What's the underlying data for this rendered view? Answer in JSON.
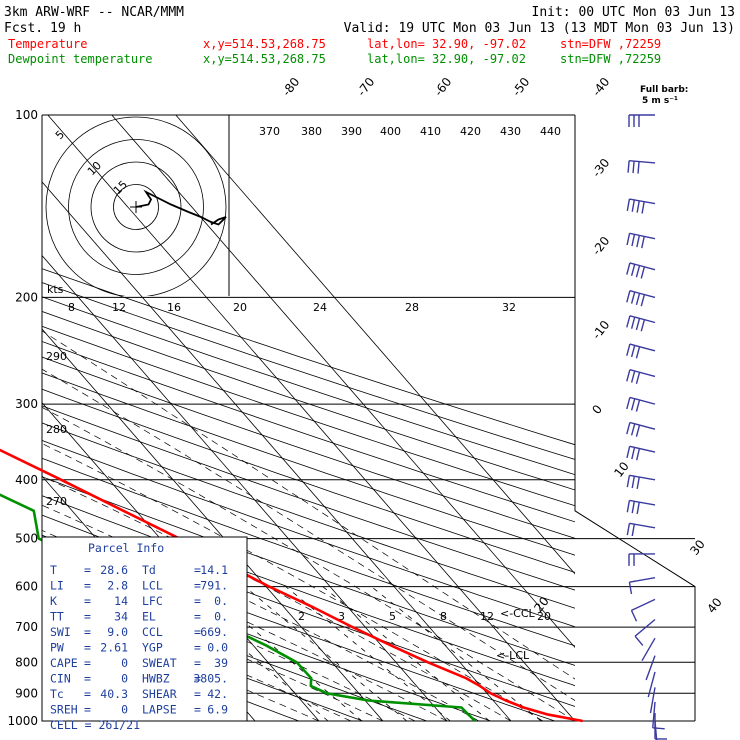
{
  "header": {
    "model": "3km ARW-WRF -- NCAR/MMM",
    "init": "Init: 00 UTC Mon 03 Jun 13",
    "fcst_label": "Fcst.",
    "fcst_value": "19 h",
    "valid": "Valid: 19 UTC Mon 03 Jun 13 (13 MDT Mon 03 Jun 13)",
    "temperature_label": "Temperature",
    "dewpoint_label": "Dewpoint temperature",
    "xy": "x,y=514.53,268.75",
    "latlon": "lat,lon= 32.90, -97.02",
    "stn": "stn=DFW ,72259"
  },
  "barb_legend": {
    "title": "Full barb:",
    "value": "5 m s⁻¹"
  },
  "chart_data": {
    "type": "line",
    "subtype": "skew-T log-P sounding",
    "y_scale": "log",
    "ylim": [
      1000,
      100
    ],
    "pressure_ticks": [
      "100",
      "200",
      "300",
      "400",
      "500",
      "600",
      "700",
      "800",
      "900",
      "1000"
    ],
    "temp_isotherm_labels": [
      "-80",
      "-70",
      "-60",
      "-50",
      "-40",
      "-30",
      "-20",
      "-10",
      "0",
      "10",
      "20",
      "30",
      "40"
    ],
    "theta_labels": [
      "370",
      "380",
      "390",
      "400",
      "410",
      "420",
      "430",
      "440"
    ],
    "dry_adiabat_labels": [
      "290",
      "280",
      "270"
    ],
    "mixing_ratio_labels": [
      "2",
      "3",
      "5",
      "8",
      "12",
      "20"
    ],
    "hodograph": {
      "unit": "kts",
      "ring_labels": [
        "5",
        "10",
        "15"
      ],
      "speed_labels": [
        "8",
        "12",
        "16",
        "20",
        "24",
        "28",
        "32"
      ],
      "uv": [
        [
          0,
          0
        ],
        [
          5,
          -1
        ],
        [
          6,
          -3
        ],
        [
          4,
          -6
        ],
        [
          8,
          -4
        ],
        [
          14,
          -1
        ],
        [
          21,
          2
        ],
        [
          26,
          4
        ],
        [
          30,
          6
        ],
        [
          33,
          7
        ],
        [
          36,
          4
        ],
        [
          33,
          5
        ],
        [
          30,
          7
        ]
      ]
    },
    "series": [
      {
        "name": "Temperature",
        "color": "#ff0000",
        "points": [
          [
            1000,
            31.2
          ],
          [
            975,
            26.5
          ],
          [
            950,
            23.8
          ],
          [
            925,
            22.0
          ],
          [
            900,
            20.6
          ],
          [
            875,
            19.9
          ],
          [
            850,
            18.8
          ],
          [
            800,
            15.0
          ],
          [
            750,
            11.5
          ],
          [
            700,
            8.0
          ],
          [
            650,
            4.6
          ],
          [
            600,
            0.5
          ],
          [
            550,
            -3.3
          ],
          [
            500,
            -7.0
          ],
          [
            450,
            -12.0
          ],
          [
            400,
            -17.5
          ],
          [
            350,
            -24.0
          ],
          [
            300,
            -31.0
          ],
          [
            250,
            -40.0
          ],
          [
            200,
            -50.5
          ],
          [
            175,
            -56.5
          ],
          [
            150,
            -63.0
          ],
          [
            135,
            -62.0
          ],
          [
            120,
            -63.0
          ],
          [
            110,
            -64.5
          ],
          [
            100,
            -66.0
          ]
        ]
      },
      {
        "name": "Dewpoint temperature",
        "color": "#009000",
        "points": [
          [
            1000,
            14.4
          ],
          [
            975,
            14.2
          ],
          [
            950,
            14.1
          ],
          [
            925,
            0.5
          ],
          [
            900,
            -5.0
          ],
          [
            875,
            -6.5
          ],
          [
            850,
            -5.4
          ],
          [
            800,
            -5.5
          ],
          [
            750,
            -8.0
          ],
          [
            700,
            -11.5
          ],
          [
            650,
            -15.0
          ],
          [
            600,
            -19.0
          ],
          [
            550,
            -24.0
          ],
          [
            500,
            -29.0
          ],
          [
            450,
            -26.0
          ],
          [
            400,
            -32.0
          ],
          [
            350,
            -42.0
          ],
          [
            300,
            -52.0
          ],
          [
            270,
            -51.5
          ],
          [
            250,
            -54.0
          ],
          [
            220,
            -60.0
          ],
          [
            200,
            -64.0
          ],
          [
            185,
            -70.0
          ],
          [
            160,
            -79.0
          ],
          [
            145,
            -80.0
          ],
          [
            130,
            -80.0
          ],
          [
            115,
            -78.0
          ],
          [
            100,
            -76.0
          ]
        ]
      }
    ],
    "markers": [
      "CCL",
      "LCL"
    ],
    "wind_profile": [
      {
        "p": 100,
        "dir": 270,
        "spd": 17
      },
      {
        "p": 120,
        "dir": 275,
        "spd": 18
      },
      {
        "p": 140,
        "dir": 280,
        "spd": 20
      },
      {
        "p": 160,
        "dir": 282,
        "spd": 22
      },
      {
        "p": 180,
        "dir": 285,
        "spd": 22
      },
      {
        "p": 200,
        "dir": 285,
        "spd": 22
      },
      {
        "p": 220,
        "dir": 285,
        "spd": 20
      },
      {
        "p": 245,
        "dir": 285,
        "spd": 18
      },
      {
        "p": 270,
        "dir": 285,
        "spd": 18
      },
      {
        "p": 300,
        "dir": 285,
        "spd": 17
      },
      {
        "p": 330,
        "dir": 285,
        "spd": 17
      },
      {
        "p": 360,
        "dir": 283,
        "spd": 16
      },
      {
        "p": 400,
        "dir": 280,
        "spd": 15
      },
      {
        "p": 440,
        "dir": 280,
        "spd": 15
      },
      {
        "p": 480,
        "dir": 280,
        "spd": 14
      },
      {
        "p": 530,
        "dir": 270,
        "spd": 10
      },
      {
        "p": 580,
        "dir": 260,
        "spd": 8
      },
      {
        "p": 630,
        "dir": 245,
        "spd": 6
      },
      {
        "p": 680,
        "dir": 230,
        "spd": 5
      },
      {
        "p": 730,
        "dir": 210,
        "spd": 4
      },
      {
        "p": 780,
        "dir": 200,
        "spd": 4
      },
      {
        "p": 830,
        "dir": 195,
        "spd": 4
      },
      {
        "p": 880,
        "dir": 190,
        "spd": 4
      },
      {
        "p": 930,
        "dir": 185,
        "spd": 5
      },
      {
        "p": 970,
        "dir": 180,
        "spd": 6
      },
      {
        "p": 1000,
        "dir": 175,
        "spd": 6
      }
    ]
  },
  "parcel_info": {
    "title": "Parcel Info",
    "rows": [
      {
        "l1": "T",
        "v1": "28.6",
        "l2": "Td",
        "v2": "14.1"
      },
      {
        "l1": "LI",
        "v1": "2.8",
        "l2": "LCL",
        "v2": "791."
      },
      {
        "l1": "K",
        "v1": "14",
        "l2": "LFC",
        "v2": "0."
      },
      {
        "l1": "TT",
        "v1": "34",
        "l2": "EL",
        "v2": "0."
      },
      {
        "l1": "SWI",
        "v1": "9.0",
        "l2": "CCL",
        "v2": "669."
      },
      {
        "l1": "PW",
        "v1": "2.61",
        "l2": "YGP",
        "v2": "0.0"
      },
      {
        "l1": "CAPE",
        "v1": "0",
        "l2": "SWEAT",
        "v2": "39"
      },
      {
        "l1": "CIN",
        "v1": "0",
        "l2": "HWBZ",
        "v2": "3805."
      },
      {
        "l1": "Tc",
        "v1": "40.3",
        "l2": "SHEAR",
        "v2": "42."
      },
      {
        "l1": "SREH",
        "v1": "0",
        "l2": "LAPSE",
        "v2": "6.9"
      }
    ],
    "cell": "CELL = 261/21"
  }
}
